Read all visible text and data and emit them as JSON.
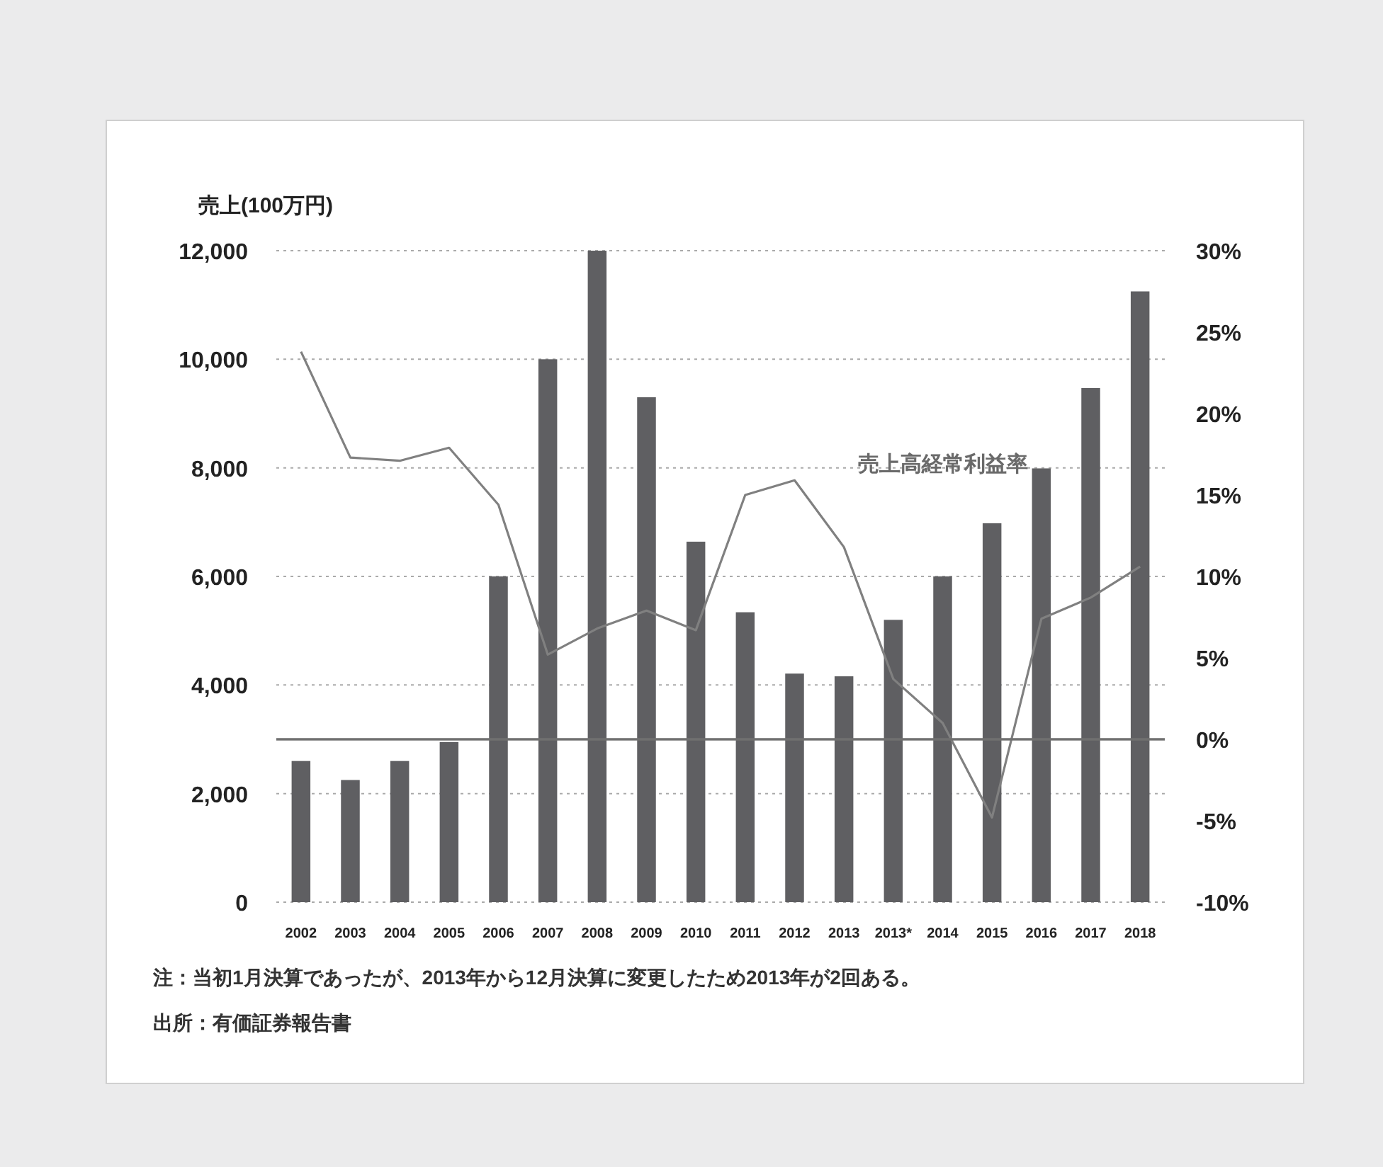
{
  "chart_data": {
    "type": "bar",
    "ylabel": "売上(100万円)",
    "categories": [
      "2002",
      "2003",
      "2004",
      "2005",
      "2006",
      "2007",
      "2008",
      "2009",
      "2010",
      "2011",
      "2012",
      "2013",
      "2013*",
      "2014",
      "2015",
      "2016",
      "2017",
      "2018"
    ],
    "series": [
      {
        "color": "#5f5f62",
        "values": [
          2600,
          2250,
          2600,
          2950,
          6000,
          10000,
          12000,
          9300,
          6640,
          5340,
          4210,
          4160,
          5200,
          6000,
          6980,
          7990,
          9470,
          11250
        ]
      },
      {
        "type": "line",
        "name": "売上高経常利益率",
        "axis": "y2",
        "color": "#808080",
        "marker": "none",
        "line_style": "solid",
        "values": [
          23.8,
          17.3,
          17.1,
          17.9,
          14.4,
          5.2,
          6.8,
          7.9,
          6.7,
          15.0,
          15.9,
          11.8,
          3.7,
          1.0,
          -4.8,
          7.4,
          8.7,
          10.6
        ]
      }
    ],
    "ylim": [
      0,
      12000
    ],
    "yticks": [
      {
        "value": 0,
        "label": "0"
      },
      {
        "value": 2000,
        "label": "2,000"
      },
      {
        "value": 4000,
        "label": "4,000"
      },
      {
        "value": 6000,
        "label": "6,000"
      },
      {
        "value": 8000,
        "label": "8,000"
      },
      {
        "value": 10000,
        "label": "10,000"
      },
      {
        "value": 12000,
        "label": "12,000"
      }
    ],
    "y2lim": [
      -10,
      30
    ],
    "y2ticks": [
      {
        "value": -10,
        "label": "-10%"
      },
      {
        "value": -5,
        "label": "-5%"
      },
      {
        "value": 0,
        "label": "0%"
      },
      {
        "value": 5,
        "label": "5%"
      },
      {
        "value": 10,
        "label": "10%"
      },
      {
        "value": 15,
        "label": "15%"
      },
      {
        "value": 20,
        "label": "20%"
      },
      {
        "value": 25,
        "label": "25%"
      },
      {
        "value": 30,
        "label": "30%"
      }
    ],
    "ref_lines": [
      {
        "axis": "y2",
        "value": 0,
        "color": "#707070",
        "line_style": "solid"
      }
    ],
    "grid": "y",
    "legend": false,
    "annotations": [
      "注：当初1月決算であったが、2013年から12月決算に変更したため2013年が2回ある。",
      "出所：有価証券報告書"
    ]
  }
}
